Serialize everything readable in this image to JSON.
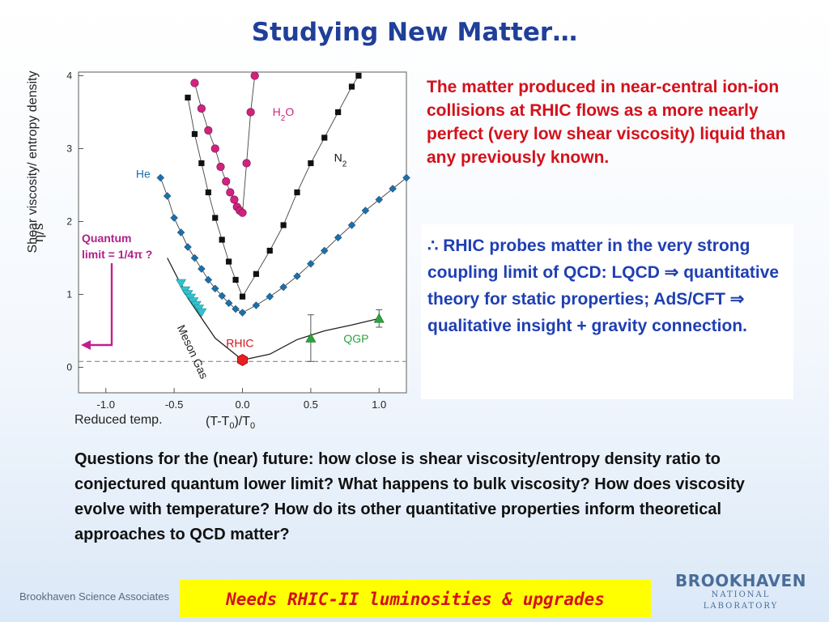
{
  "title": "Studying New Matter…",
  "chart": {
    "y_axis_label": "Shear viscosity/ entropy density",
    "y_symbol": "η/s",
    "x_label_reduced": "Reduced temp.",
    "x_label_formula": "(T-T0)/T0",
    "quantum_line1": "Quantum",
    "quantum_line2": "limit = 1/4π ?"
  },
  "chart_data": {
    "type": "scatter",
    "xlim": [
      -1.2,
      1.2
    ],
    "ylim": [
      -0.35,
      4.05
    ],
    "x_ticks": [
      "-1.0",
      "-0.5",
      "0.0",
      "0.5",
      "1.0"
    ],
    "y_ticks": [
      "0",
      "1",
      "2",
      "3",
      "4"
    ],
    "reference_line_y": 0.08,
    "series": [
      {
        "name": "H2O",
        "color": "#d0237f",
        "marker": "circle",
        "x": [
          -0.35,
          -0.3,
          -0.25,
          -0.2,
          -0.16,
          -0.12,
          -0.09,
          -0.06,
          -0.04,
          -0.02,
          0.0,
          0.03,
          0.06,
          0.09
        ],
        "y": [
          3.9,
          3.55,
          3.25,
          3.0,
          2.75,
          2.55,
          2.4,
          2.3,
          2.2,
          2.15,
          2.12,
          2.8,
          3.5,
          4.0
        ]
      },
      {
        "name": "N2",
        "color": "#111111",
        "marker": "square",
        "x": [
          -0.4,
          -0.35,
          -0.3,
          -0.25,
          -0.2,
          -0.15,
          -0.1,
          -0.05,
          0.0,
          0.1,
          0.2,
          0.3,
          0.4,
          0.5,
          0.6,
          0.7,
          0.8,
          0.85
        ],
        "y": [
          3.7,
          3.2,
          2.8,
          2.4,
          2.05,
          1.75,
          1.45,
          1.2,
          0.97,
          1.28,
          1.6,
          1.95,
          2.4,
          2.8,
          3.15,
          3.5,
          3.85,
          4.0
        ]
      },
      {
        "name": "He",
        "color": "#1e6fa8",
        "marker": "diamond",
        "x": [
          -0.6,
          -0.55,
          -0.5,
          -0.45,
          -0.4,
          -0.35,
          -0.3,
          -0.25,
          -0.2,
          -0.15,
          -0.1,
          -0.05,
          0.0,
          0.1,
          0.2,
          0.3,
          0.4,
          0.5,
          0.6,
          0.7,
          0.8,
          0.9,
          1.0,
          1.1,
          1.2
        ],
        "y": [
          2.6,
          2.35,
          2.05,
          1.85,
          1.65,
          1.5,
          1.35,
          1.2,
          1.08,
          0.98,
          0.88,
          0.8,
          0.75,
          0.85,
          0.97,
          1.1,
          1.25,
          1.42,
          1.6,
          1.78,
          1.95,
          2.15,
          2.3,
          2.45,
          2.6
        ]
      },
      {
        "name": "Meson Gas",
        "color": "#33c2cc",
        "marker": "triangle-down",
        "x": [
          -0.45,
          -0.42,
          -0.4,
          -0.38,
          -0.36,
          -0.34,
          -0.32,
          -0.3
        ],
        "y": [
          1.15,
          1.05,
          1.0,
          0.95,
          0.9,
          0.85,
          0.8,
          0.75
        ]
      },
      {
        "name": "RHIC",
        "color": "#e82020",
        "marker": "hexagon",
        "x": [
          0.0
        ],
        "y": [
          0.1
        ]
      },
      {
        "name": "QGP",
        "color": "#2aa53a",
        "marker": "triangle-up",
        "x": [
          0.5,
          1.0
        ],
        "y": [
          0.4,
          0.67
        ],
        "yerr": [
          0.32,
          0.12
        ]
      }
    ],
    "curve": {
      "x": [
        -0.55,
        -0.4,
        -0.2,
        0.0,
        0.2,
        0.4,
        0.6,
        0.8,
        1.0
      ],
      "y": [
        1.5,
        0.95,
        0.4,
        0.1,
        0.18,
        0.38,
        0.5,
        0.58,
        0.67
      ]
    }
  },
  "right_text": "The matter produced in near-central ion-ion collisions at RHIC flows as a more nearly perfect (very low shear viscosity) liquid than any previously known.",
  "blue_text": "∴ RHIC probes matter in the very strong coupling limit of QCD: LQCD ⇒ quantitative theory for static properties; AdS/CFT ⇒ qualitative insight + gravity connection.",
  "questions": "Questions for the (near) future: how close is shear viscosity/entropy density ratio to conjectured quantum lower limit?  What happens to bulk viscosity?  How does viscosity evolve with temperature? How do its other quantitative properties inform theoretical approaches to QCD matter?",
  "footer_left": "Brookhaven Science Associates",
  "yellow_text": "Needs RHIC-II luminosities & upgrades",
  "logo_main": "BROOKHAVEN",
  "logo_sub": "NATIONAL LABORATORY"
}
